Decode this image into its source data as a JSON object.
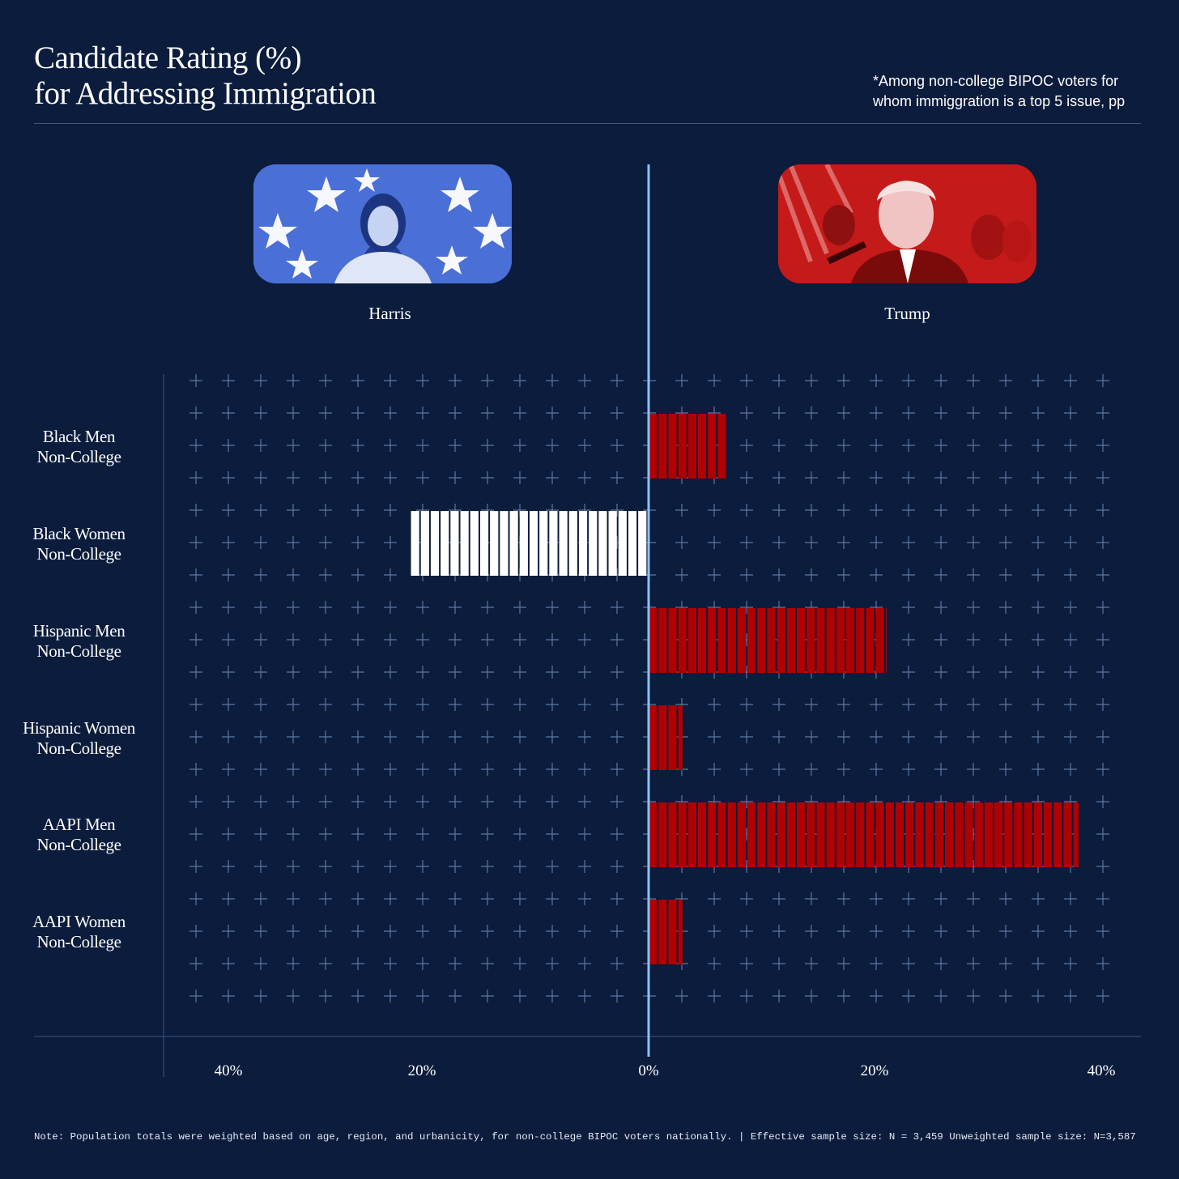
{
  "colors": {
    "background": "#0b1c3c",
    "harris_bar": "#ffffff",
    "trump_bar": "#b00000",
    "axis_line": "#8fbfff",
    "grid_cross": "#5e77a3"
  },
  "header": {
    "title_line1": "Candidate Rating (%)",
    "title_line2": "for Addressing Immigration",
    "note_line1": "*Among non-college BIPOC voters for",
    "note_line2": "whom immiggration is a top 5 issue, pp"
  },
  "candidates": {
    "left": {
      "name": "Harris",
      "photo_icon": "harris-portrait-stars-icon"
    },
    "right": {
      "name": "Trump",
      "photo_icon": "trump-portrait-rally-icon"
    }
  },
  "chart_data": {
    "type": "bar",
    "orientation": "horizontal-diverging",
    "title": "Candidate Rating (%) for Addressing Immigration",
    "xlabel": "",
    "ylabel": "",
    "xlim": [
      -40,
      40
    ],
    "x_ticks": [
      {
        "value": -40,
        "label": "40%"
      },
      {
        "value": -20,
        "label": "20%"
      },
      {
        "value": 0,
        "label": "0%"
      },
      {
        "value": 20,
        "label": "20%"
      },
      {
        "value": 40,
        "label": "40%"
      }
    ],
    "categories": [
      {
        "line1": "Black Men",
        "line2": "Non-College"
      },
      {
        "line1": "Black Women",
        "line2": "Non-College"
      },
      {
        "line1": "Hispanic Men",
        "line2": "Non-College"
      },
      {
        "line1": "Hispanic Women",
        "line2": "Non-College"
      },
      {
        "line1": "AAPI Men",
        "line2": "Non-College"
      },
      {
        "line1": "AAPI Women",
        "line2": "Non-College"
      }
    ],
    "values": [
      7,
      -21,
      21,
      3,
      38,
      3
    ],
    "legend": {
      "negative": "Harris",
      "positive": "Trump"
    },
    "grid": true
  },
  "footnote": "Note: Population totals were weighted based on age, region, and urbanicity, for non-college BIPOC voters nationally. | Effective sample size: N = 3,459 Unweighted sample size: N=3,587"
}
